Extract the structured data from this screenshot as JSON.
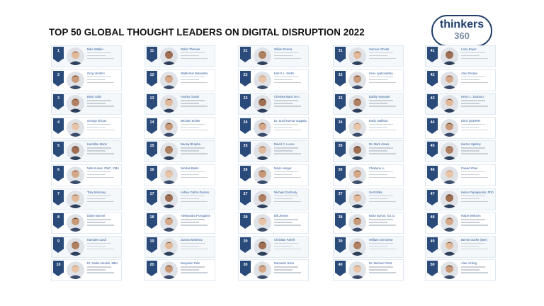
{
  "title": "TOP 50 GLOBAL THOUGHT LEADERS ON DIGITAL DISRUPTION 2022",
  "logo": {
    "word": "thinkers",
    "number": "360"
  },
  "colors": {
    "badge": "#2a4a7a",
    "name_link": "#2a5a9a",
    "row_tint": "#f4f8fb",
    "logo": "#1f3d6b"
  },
  "columns": [
    {
      "entries": [
        {
          "rank": "1",
          "name": "Mike Walker"
        },
        {
          "rank": "2",
          "name": "Greg Verdino"
        },
        {
          "rank": "3",
          "name": "Brian Solis"
        },
        {
          "rank": "4",
          "name": "George Ilirican"
        },
        {
          "rank": "5",
          "name": "Hamilton Mann"
        },
        {
          "rank": "6",
          "name": "Nitin Kumar, CMC, CMA"
        },
        {
          "rank": "7",
          "name": "Tony Moroney"
        },
        {
          "rank": "8",
          "name": "Didier Bonnet"
        },
        {
          "rank": "9",
          "name": "Kamales Lardi"
        },
        {
          "rank": "10",
          "name": "Dr. Nadia Nicolini, MBA"
        }
      ]
    },
    {
      "entries": [
        {
          "rank": "11",
          "name": "Robin Thomas"
        },
        {
          "rank": "12",
          "name": "Waldemar Balowska"
        },
        {
          "rank": "13",
          "name": "Andrey Gorak"
        },
        {
          "rank": "14",
          "name": "Michael Kohler"
        },
        {
          "rank": "15",
          "name": "Neeraj Bhopha"
        },
        {
          "rank": "16",
          "name": "Nicolas Babin"
        },
        {
          "rank": "17",
          "name": "Ashley Gabra Durano"
        },
        {
          "rank": "18",
          "name": "Aleksandra Przegalins"
        },
        {
          "rank": "19",
          "name": "Joanna Martinez"
        },
        {
          "rank": "20",
          "name": "Benjamin Talin"
        }
      ]
    },
    {
      "entries": [
        {
          "rank": "21",
          "name": "Gillian Perera"
        },
        {
          "rank": "22",
          "name": "Karl K.L. Smith"
        },
        {
          "rank": "23",
          "name": "Chelsea Marti, M.A."
        },
        {
          "rank": "24",
          "name": "Dr. Sunil Kumar Vuppala"
        },
        {
          "rank": "25",
          "name": "David C. Lucca"
        },
        {
          "rank": "26",
          "name": "Mario Herger"
        },
        {
          "rank": "27",
          "name": "Michael Docherty"
        },
        {
          "rank": "28",
          "name": "Bill Jensen"
        },
        {
          "rank": "29",
          "name": "Christian Fairell"
        },
        {
          "rank": "30",
          "name": "Damodar Sahu"
        }
      ]
    },
    {
      "entries": [
        {
          "rank": "31",
          "name": "Sumeer Ghosh"
        },
        {
          "rank": "32",
          "name": "Irene Lyakovetsky"
        },
        {
          "rank": "33",
          "name": "Bobby Varanasi"
        },
        {
          "rank": "34",
          "name": "Emily Mallison"
        },
        {
          "rank": "35",
          "name": "Dr. Mark Jones"
        },
        {
          "rank": "36",
          "name": "Charlene Li"
        },
        {
          "rank": "37",
          "name": "Gert Bolla"
        },
        {
          "rank": "38",
          "name": "Brian Burton, Ed. D."
        },
        {
          "rank": "39",
          "name": "William Genovese"
        },
        {
          "rank": "40",
          "name": "Dr. Mehmet Yildiz"
        }
      ]
    },
    {
      "entries": [
        {
          "rank": "41",
          "name": "Larry Boyer"
        },
        {
          "rank": "42",
          "name": "Alex Sharpe"
        },
        {
          "rank": "43",
          "name": "Kevin L. Jackson"
        },
        {
          "rank": "44",
          "name": "Dirck QUERIN"
        },
        {
          "rank": "45",
          "name": "Harron Spinley"
        },
        {
          "rank": "46",
          "name": "Fawad Khan"
        },
        {
          "rank": "47",
          "name": "Helen Papagiannis, PhD"
        },
        {
          "rank": "48",
          "name": "Ralph Welborn"
        },
        {
          "rank": "49",
          "name": "Bernie Clarke (Bee)"
        },
        {
          "rank": "50",
          "name": "Alan Amling"
        }
      ]
    }
  ]
}
